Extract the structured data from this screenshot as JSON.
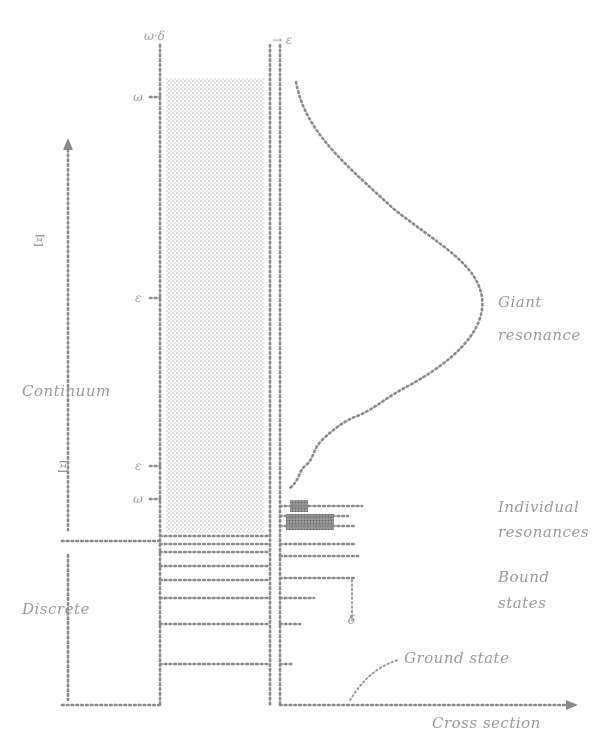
{
  "figure": {
    "axis_top_left": "ω·δ",
    "axis_top_right": "→ ε",
    "energy_ticks": [
      "ω",
      "ε",
      "ε",
      "ω"
    ],
    "left_labels": {
      "region_top": "Ξ",
      "continuum": "Continuum",
      "region_mid": "Ξ",
      "discrete": "Discrete"
    },
    "right_labels": {
      "giant_1": "Giant",
      "giant_2": "resonance",
      "individual_1": "Individual",
      "individual_2": "resonances",
      "bound_1": "Bound",
      "bound_2": "states",
      "bound_mark": "δ",
      "ground_state": "Ground state",
      "cross_section": "Cross section"
    }
  }
}
